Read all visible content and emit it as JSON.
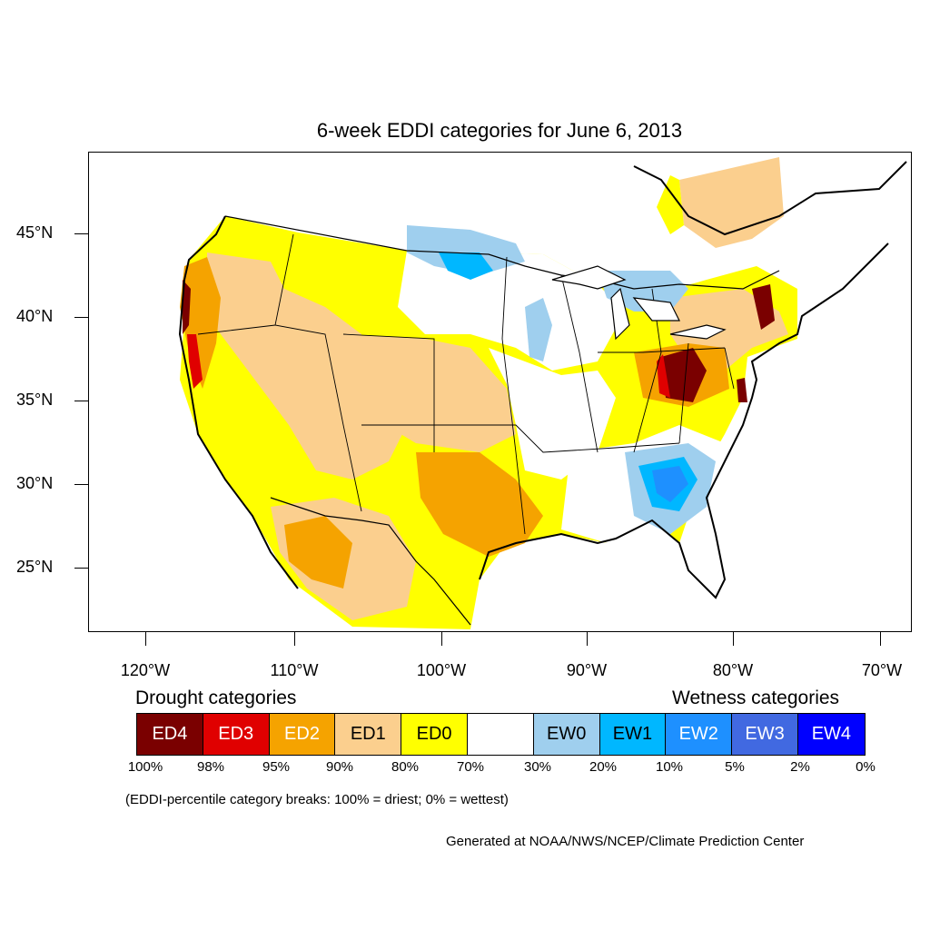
{
  "title": "6-week EDDI categories for June 6, 2013",
  "lat_labels": [
    "45°N",
    "40°N",
    "35°N",
    "30°N",
    "25°N"
  ],
  "lon_labels": [
    "120°W",
    "110°W",
    "100°W",
    "90°W",
    "80°W",
    "70°W"
  ],
  "legend": {
    "drought_heading": "Drought categories",
    "wetness_heading": "Wetness categories",
    "categories": [
      {
        "label": "ED4",
        "color": "#7a0000",
        "text_color": "#ffffff"
      },
      {
        "label": "ED3",
        "color": "#e00000",
        "text_color": "#ffffff"
      },
      {
        "label": "ED2",
        "color": "#f5a300",
        "text_color": "#ffffff"
      },
      {
        "label": "ED1",
        "color": "#fbcf8e",
        "text_color": "#000000"
      },
      {
        "label": "ED0",
        "color": "#ffff00",
        "text_color": "#000000"
      },
      {
        "label": "",
        "color": "#ffffff",
        "text_color": "#000000"
      },
      {
        "label": "EW0",
        "color": "#9fcfee",
        "text_color": "#000000"
      },
      {
        "label": "EW1",
        "color": "#00b7ff",
        "text_color": "#000000"
      },
      {
        "label": "EW2",
        "color": "#1e90ff",
        "text_color": "#ffffff"
      },
      {
        "label": "EW3",
        "color": "#4169e1",
        "text_color": "#ffffff"
      },
      {
        "label": "EW4",
        "color": "#0000ff",
        "text_color": "#ffffff"
      }
    ],
    "percentiles": [
      "100%",
      "98%",
      "95%",
      "90%",
      "80%",
      "70%",
      "30%",
      "20%",
      "10%",
      "5%",
      "2%",
      "0%"
    ]
  },
  "note": "(EDDI-percentile category breaks: 100% = driest; 0% = wettest)",
  "credit": "Generated at NOAA/NWS/NCEP/Climate Prediction Center"
}
